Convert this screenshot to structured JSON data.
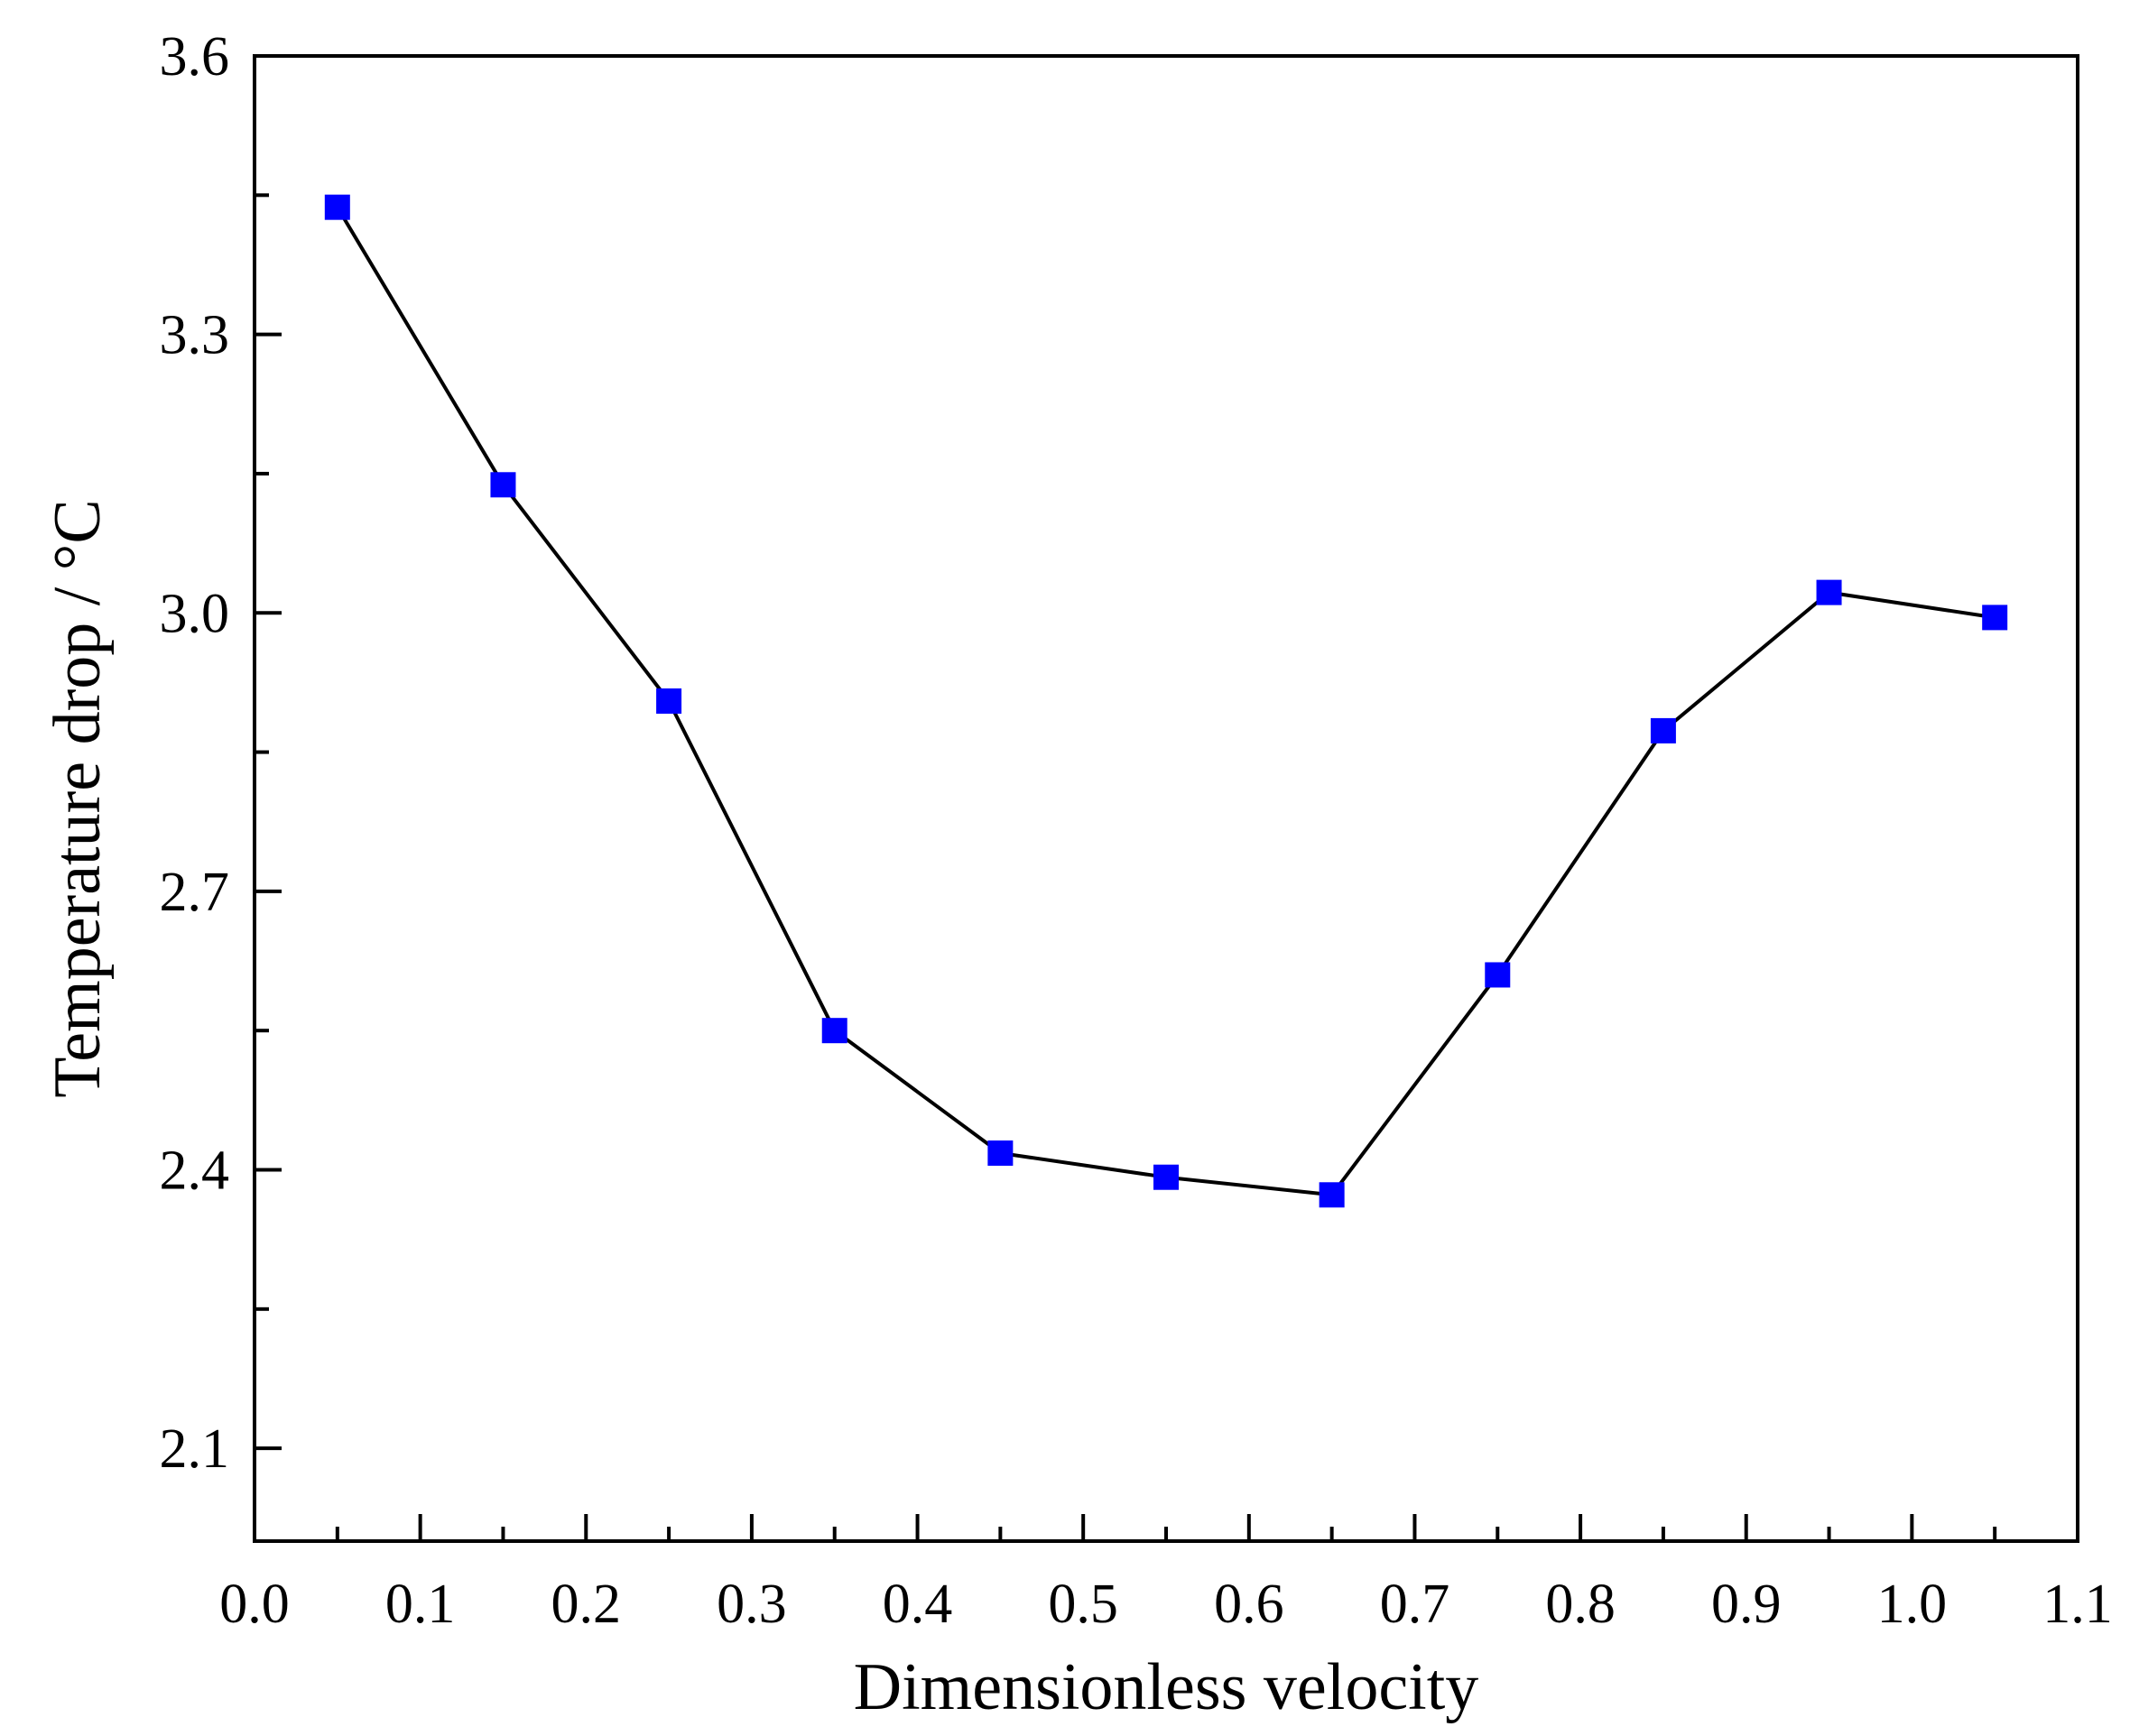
{
  "chart_data": {
    "type": "line",
    "title": "",
    "xlabel": "Dimensionless velocity",
    "ylabel": "Temperature drop / °C",
    "xlim": [
      0.0,
      1.1
    ],
    "ylim": [
      2.0,
      3.6
    ],
    "xticks": [
      "0.0",
      "0.1",
      "0.2",
      "0.3",
      "0.4",
      "0.5",
      "0.6",
      "0.7",
      "0.8",
      "0.9",
      "1.0",
      "1.1"
    ],
    "yticks": [
      "2.1",
      "2.4",
      "2.7",
      "3.0",
      "3.3",
      "3.6"
    ],
    "grid": false,
    "legend": "none",
    "series": [
      {
        "marker": "square",
        "marker_color": "#0000ff",
        "line_color": "#000000",
        "x": [
          0.05,
          0.15,
          0.25,
          0.35,
          0.45,
          0.55,
          0.65,
          0.75,
          0.85,
          0.95,
          1.05
        ],
        "y": [
          3.437,
          3.138,
          2.905,
          2.55,
          2.418,
          2.392,
          2.373,
          2.61,
          2.873,
          3.022,
          2.995
        ]
      }
    ]
  }
}
